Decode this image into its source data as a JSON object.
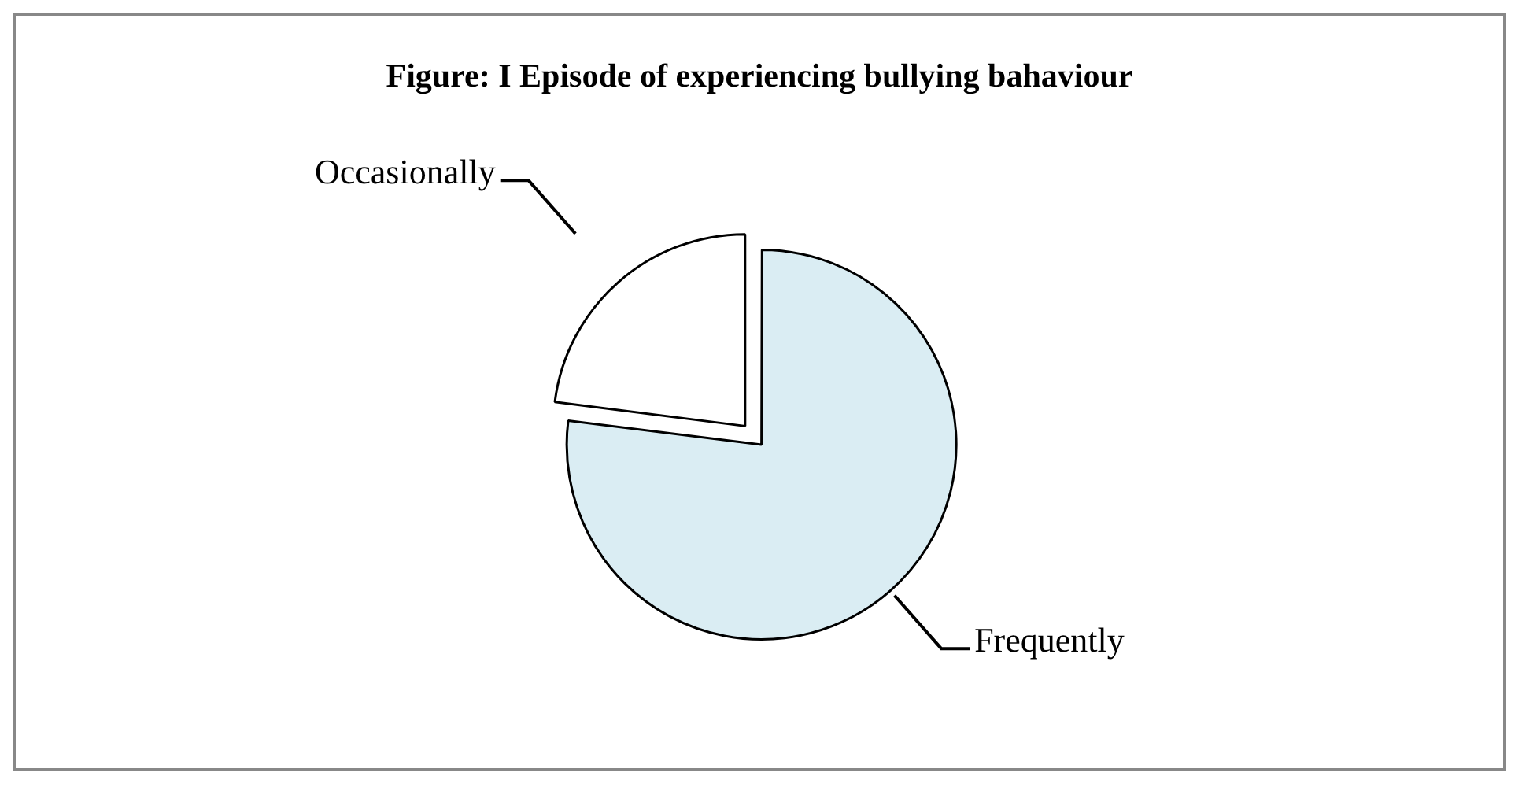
{
  "chart_data": {
    "type": "pie",
    "title": "Figure: I Episode of experiencing bullying bahaviour",
    "categories": [
      "Frequently",
      "Occasionally"
    ],
    "values": [
      77,
      23
    ],
    "colors": [
      "#daedf3",
      "#ffffff"
    ],
    "legend": false
  }
}
